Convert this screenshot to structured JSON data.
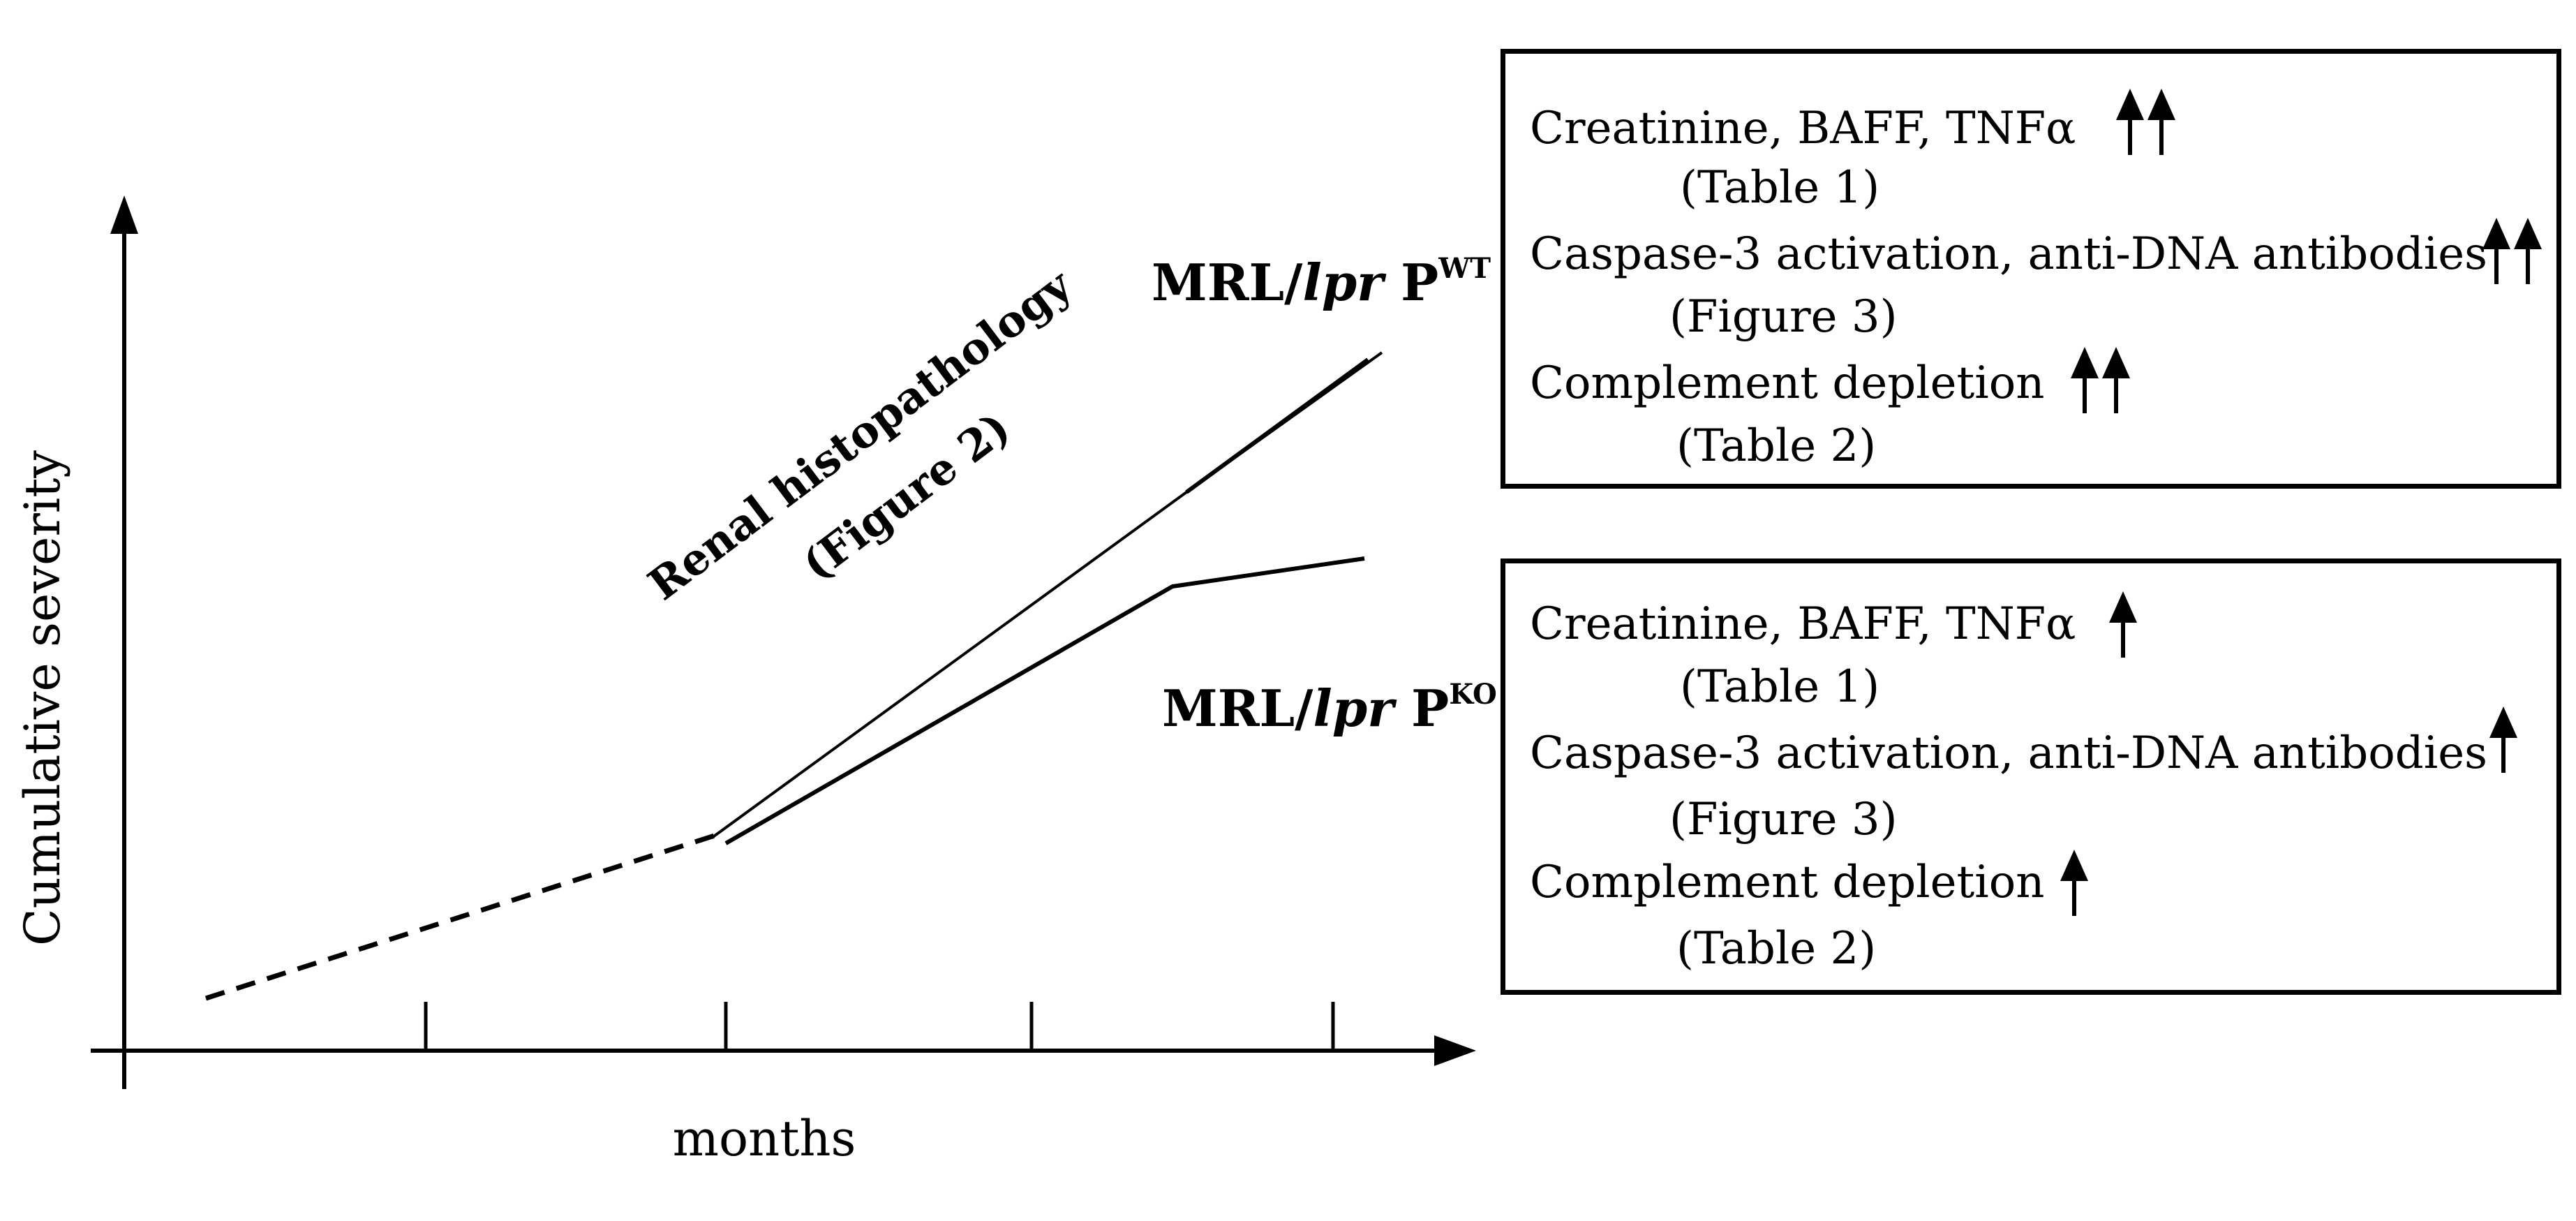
{
  "axes": {
    "y_label": "Cumulative severity",
    "x_label": "months"
  },
  "annotation": {
    "line1": "Renal histopathology",
    "line2": "(Figure 2)"
  },
  "strains": {
    "wt": {
      "prefix": "MRL/",
      "italic": "lpr",
      "suffix": " P",
      "sup": "WT"
    },
    "ko": {
      "prefix": "MRL/",
      "italic": "lpr",
      "suffix": " P",
      "sup": "KO"
    }
  },
  "wt_box": {
    "rows": [
      {
        "text": "Creatinine,  BAFF, TNFα",
        "arrows": "double-up-arrow"
      },
      {
        "text": "(Table 1)"
      },
      {
        "text": "Caspase-3 activation, anti-DNA antibodies",
        "arrows": "double-up-arrow"
      },
      {
        "text": "(Figure 3)"
      },
      {
        "text": "Complement depletion",
        "arrows": "double-up-arrow"
      },
      {
        "text": "(Table 2)"
      }
    ]
  },
  "ko_box": {
    "rows": [
      {
        "text": "Creatinine,  BAFF, TNFα",
        "arrows": "single-up-arrow"
      },
      {
        "text": "(Table 1)"
      },
      {
        "text": "Caspase-3 activation, anti-DNA antibodies",
        "arrows": "single-up-arrow"
      },
      {
        "text": "(Figure 3)"
      },
      {
        "text": "Complement depletion",
        "arrows": "single-up-arrow"
      },
      {
        "text": "(Table 2)"
      }
    ]
  }
}
